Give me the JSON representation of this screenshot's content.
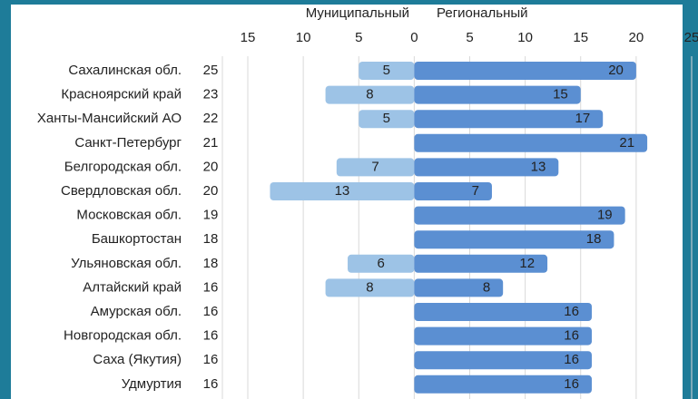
{
  "chart_data": {
    "type": "diverging-bar",
    "categories": [
      "Сахалинская обл.",
      "Красноярский край",
      "Ханты-Мансийский АО",
      "Санкт-Петербург",
      "Белгородская обл.",
      "Свердловская обл.",
      "Московская обл.",
      "Башкортостан",
      "Ульяновская обл.",
      "Алтайский край",
      "Амурская обл.",
      "Новгородская обл.",
      "Саха (Якутия)",
      "Удмуртия"
    ],
    "totals": [
      25,
      23,
      22,
      21,
      20,
      20,
      19,
      18,
      18,
      16,
      16,
      16,
      16,
      16
    ],
    "series": [
      {
        "name": "Муниципальный",
        "color": "#9dc3e6",
        "values": [
          -5,
          -8,
          -5,
          0,
          -7,
          -13,
          0,
          0,
          -6,
          -8,
          0,
          0,
          0,
          0
        ],
        "value_labels": [
          "5",
          "8",
          "5",
          null,
          "7",
          "13",
          null,
          null,
          "6",
          "8",
          null,
          null,
          null,
          null
        ]
      },
      {
        "name": "Региональный",
        "color": "#5b8fd2",
        "values": [
          20,
          15,
          17,
          21,
          13,
          7,
          19,
          18,
          12,
          8,
          16,
          16,
          16,
          16
        ]
      }
    ],
    "xlim": [
      -15,
      25
    ],
    "xticks": [
      {
        "value": -15,
        "label": "15"
      },
      {
        "value": -10,
        "label": "10"
      },
      {
        "value": -5,
        "label": "5"
      },
      0,
      5,
      10,
      15,
      20,
      25
    ],
    "grid": true
  }
}
